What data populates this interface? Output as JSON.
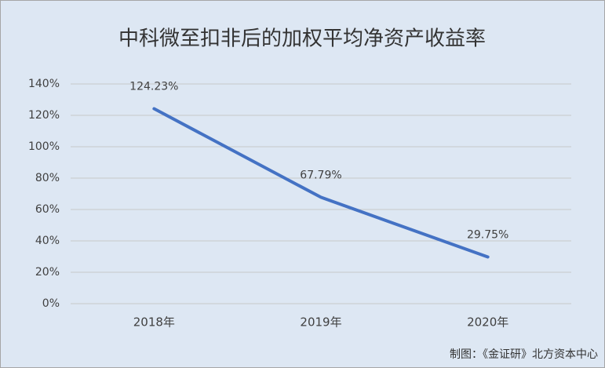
{
  "chart_data": {
    "type": "line",
    "title": "中科微至扣非后的加权平均净资产收益率",
    "categories": [
      "2018年",
      "2019年",
      "2020年"
    ],
    "values": [
      124.23,
      67.79,
      29.75
    ],
    "value_labels": [
      "124.23%",
      "67.79%",
      "29.75%"
    ],
    "color": "#4472c4",
    "ylim": [
      0,
      140
    ],
    "yticks": [
      {
        "value": 0,
        "label": "0%"
      },
      {
        "value": 20,
        "label": "20%"
      },
      {
        "value": 40,
        "label": "40%"
      },
      {
        "value": 60,
        "label": "60%"
      },
      {
        "value": 80,
        "label": "80%"
      },
      {
        "value": 100,
        "label": "100%"
      },
      {
        "value": 120,
        "label": "120%"
      },
      {
        "value": 140,
        "label": "140%"
      }
    ],
    "grid": true,
    "source": "制图：《金证研》北方资本中心"
  }
}
